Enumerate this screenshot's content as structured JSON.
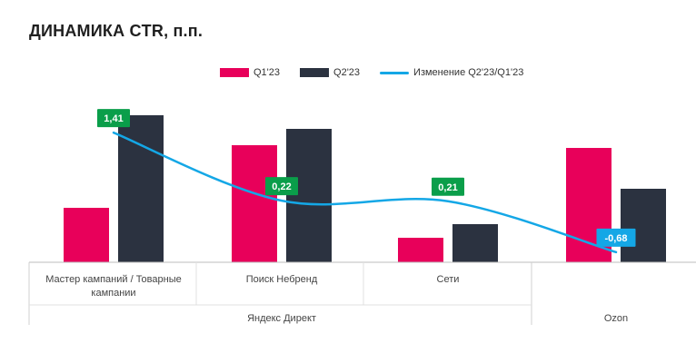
{
  "title": "ДИНАМИКА CTR, п.п.",
  "chart_data": {
    "type": "bar",
    "title": "ДИНАМИКА CTR, п.п.",
    "categories": [
      [
        "Мастер кампаний / Товарные",
        "кампании"
      ],
      [
        "Поиск Небренд"
      ],
      [
        "Сети"
      ],
      []
    ],
    "groups": [
      {
        "label": "Яндекс Директ",
        "span": [
          0,
          2
        ]
      },
      {
        "label": "Ozon",
        "span": [
          3,
          3
        ]
      }
    ],
    "series": [
      {
        "name": "Q1'23",
        "color": "#e8005a",
        "values": [
          2.0,
          4.3,
          0.9,
          4.2
        ]
      },
      {
        "name": "Q2'23",
        "color": "#2b3240",
        "values": [
          5.4,
          4.9,
          1.4,
          2.7
        ]
      }
    ],
    "change_series": {
      "name": "Изменение Q2'23/Q1'23",
      "color": "#14a7e6",
      "values": [
        1.41,
        0.22,
        0.21,
        -0.68
      ],
      "labels": [
        "1,41",
        "0,22",
        "0,21",
        "-0,68"
      ],
      "label_colors": [
        "#0a9e4a",
        "#0a9e4a",
        "#0a9e4a",
        "#14a7e6"
      ]
    },
    "ylim": [
      0,
      6
    ],
    "grid": false,
    "legend": "top-center"
  }
}
